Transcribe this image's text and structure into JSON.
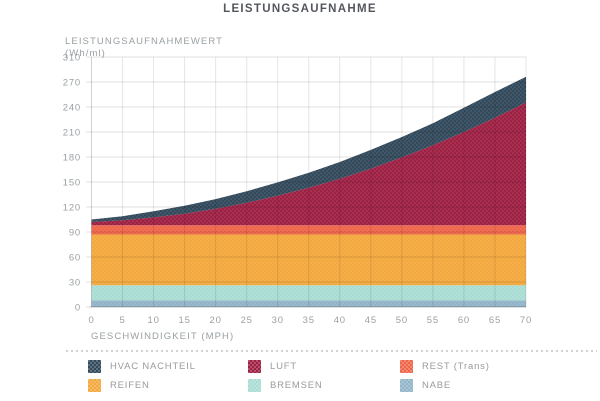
{
  "chart_data": {
    "type": "area",
    "stacked": true,
    "title": "LEISTUNGSAUFNAHME",
    "ylabel": "LEISTUNGSAUFNAHMEWERT",
    "y_unit": "(Wh/ml)",
    "xlabel": "GESCHWINDIGKEIT (MPH)",
    "x": [
      0,
      5,
      10,
      15,
      20,
      25,
      30,
      35,
      40,
      45,
      50,
      55,
      60,
      65,
      70
    ],
    "x_tick_labels": [
      "0",
      "5",
      "10",
      "15",
      "20",
      "25",
      "30",
      "35",
      "40",
      "45",
      "50",
      "55",
      "60",
      "65",
      "70"
    ],
    "y_tick_labels": [
      "0",
      "30",
      "60",
      "90",
      "120",
      "150",
      "180",
      "210",
      "240",
      "270",
      "310"
    ],
    "y_tick_values": [
      0,
      30,
      60,
      90,
      120,
      150,
      180,
      210,
      240,
      270,
      310
    ],
    "grid": true,
    "legend_position": "bottom",
    "series_bottom_to_top": [
      {
        "name": "NABE",
        "color": "#91b4c9",
        "values": [
          8,
          8,
          8,
          8,
          8,
          8,
          8,
          8,
          8,
          8,
          8,
          8,
          8,
          8,
          8
        ]
      },
      {
        "name": "BREMSEN",
        "color": "#a9ddd4",
        "values": [
          18,
          18,
          18,
          18,
          18,
          18,
          18,
          18,
          18,
          18,
          18,
          18,
          18,
          18,
          18
        ]
      },
      {
        "name": "REIFEN",
        "color": "#f3a83e",
        "values": [
          61,
          61,
          61,
          61,
          61,
          61,
          61,
          61,
          61,
          61,
          61,
          61,
          61,
          61,
          61
        ]
      },
      {
        "name": "REST (Trans)",
        "color": "#ee654a",
        "values": [
          11,
          11,
          11,
          11,
          11,
          11,
          11,
          11,
          11,
          11,
          11,
          11,
          11,
          11,
          11
        ]
      },
      {
        "name": "LUFT",
        "color": "#9e2144",
        "values": [
          4,
          6,
          9.5,
          14,
          20,
          27,
          35.5,
          45,
          56,
          68,
          81.5,
          96,
          112,
          129,
          147.5
        ]
      },
      {
        "name": "HVAC NACHTEIL",
        "color": "#334a5c",
        "values": [
          3,
          5,
          7.5,
          9.5,
          11.5,
          14,
          16,
          18,
          20,
          22.5,
          24.5,
          26.5,
          29,
          31,
          33
        ]
      }
    ]
  },
  "legend": {
    "items": [
      {
        "label": "HVAC NACHTEIL",
        "color": "#334a5c"
      },
      {
        "label": "LUFT",
        "color": "#9e2144"
      },
      {
        "label": "REST (Trans)",
        "color": "#ee654a"
      },
      {
        "label": "REIFEN",
        "color": "#f3a83e"
      },
      {
        "label": "BREMSEN",
        "color": "#a9ddd4"
      },
      {
        "label": "NABE",
        "color": "#91b4c9"
      }
    ]
  }
}
